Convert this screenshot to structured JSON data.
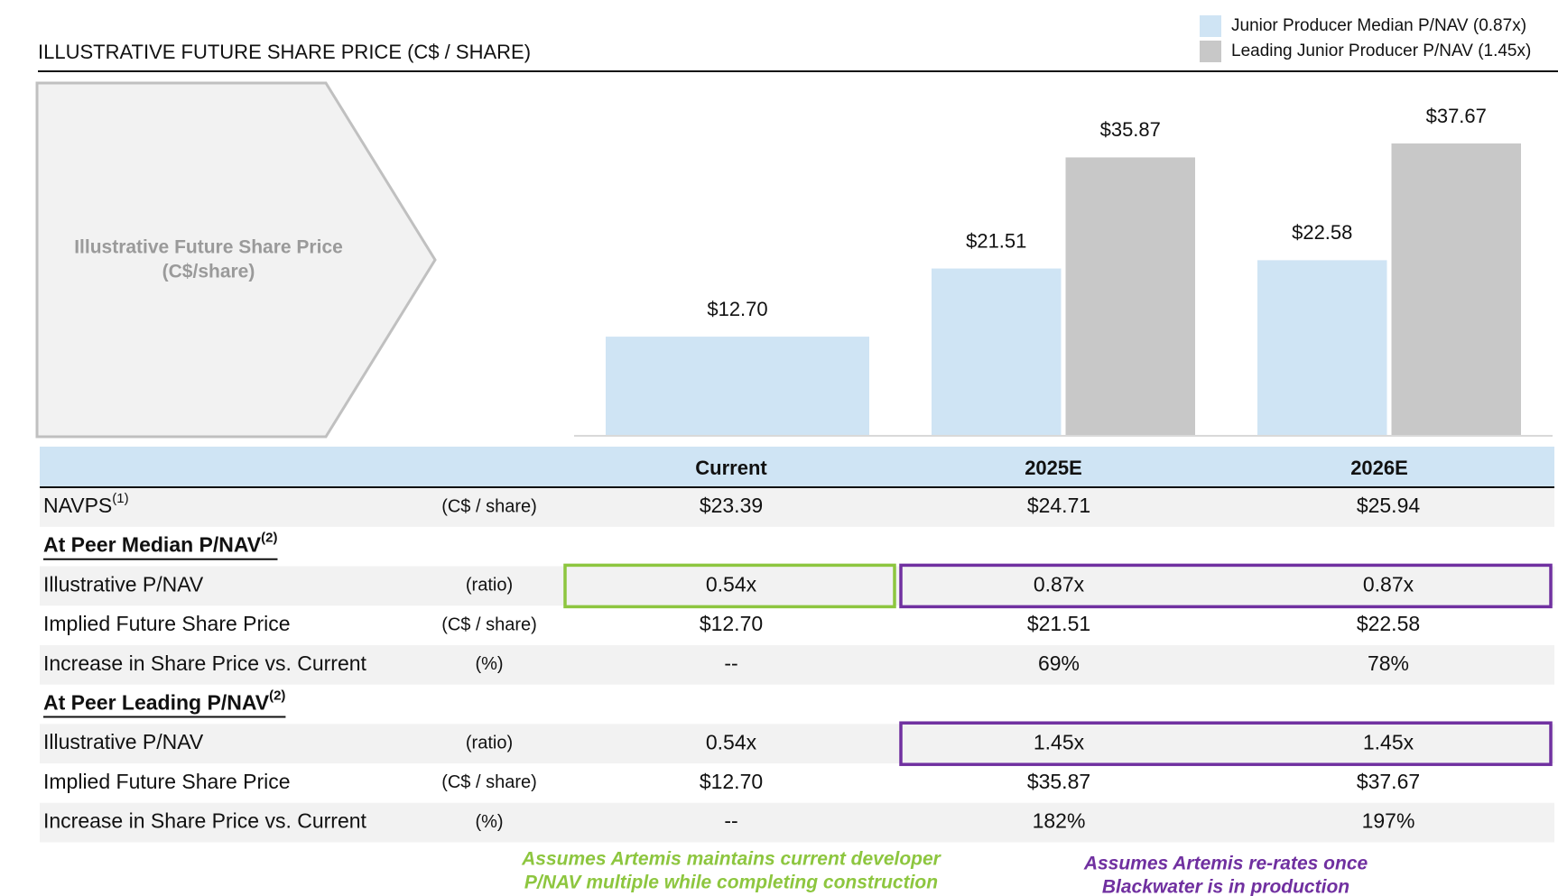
{
  "chart_data": {
    "type": "bar",
    "title": "ILLUSTRATIVE FUTURE SHARE PRICE (C$ / SHARE)",
    "panel_label": [
      "Illustrative Future Share Price",
      "(C$/share)"
    ],
    "categories": [
      "Current",
      "2025E",
      "2026E"
    ],
    "series": [
      {
        "name": "Junior Producer Median P/NAV (0.87x)",
        "color": "#cfe4f4",
        "values": [
          12.7,
          21.51,
          22.58
        ],
        "value_labels": [
          "$12.70",
          "$21.51",
          "$22.58"
        ]
      },
      {
        "name": "Leading Junior Producer P/NAV (1.45x)",
        "color": "#c8c8c8",
        "values": [
          null,
          35.87,
          37.67
        ],
        "value_labels": [
          null,
          "$35.87",
          "$37.67"
        ]
      }
    ],
    "legend": "top-right"
  },
  "table": {
    "rows": [
      {
        "label": "NAVPS",
        "sup": "(1)",
        "unit": "(C$ / share)",
        "values": [
          "$23.39",
          "$24.71",
          "$25.94"
        ]
      },
      {
        "label": "At Peer Median P/NAV",
        "sup": "(2)"
      },
      {
        "label": "Illustrative P/NAV",
        "unit": "(ratio)",
        "values": [
          "0.54x",
          "0.87x",
          "0.87x"
        ]
      },
      {
        "label": "Implied Future Share Price",
        "unit": "(C$ / share)",
        "values": [
          "$12.70",
          "$21.51",
          "$22.58"
        ]
      },
      {
        "label": "Increase in Share Price vs. Current",
        "unit": "(%)",
        "values": [
          "--",
          "69%",
          "78%"
        ]
      },
      {
        "label": "At Peer Leading P/NAV",
        "sup": "(2)"
      },
      {
        "label": "Illustrative P/NAV",
        "unit": "(ratio)",
        "values": [
          "0.54x",
          "1.45x",
          "1.45x"
        ]
      },
      {
        "label": "Implied Future Share Price",
        "unit": "(C$ / share)",
        "values": [
          "$12.70",
          "$35.87",
          "$37.67"
        ]
      },
      {
        "label": "Increase in Share Price vs. Current",
        "unit": "(%)",
        "values": [
          "--",
          "182%",
          "197%"
        ]
      }
    ]
  },
  "notes": [
    {
      "lines": [
        "Assumes Artemis maintains current developer",
        "P/NAV multiple while completing construction"
      ],
      "color": "#8dc63f"
    },
    {
      "lines": [
        "Assumes Artemis re-rates once",
        "Blackwater is in production"
      ],
      "color": "#7030a0"
    }
  ]
}
